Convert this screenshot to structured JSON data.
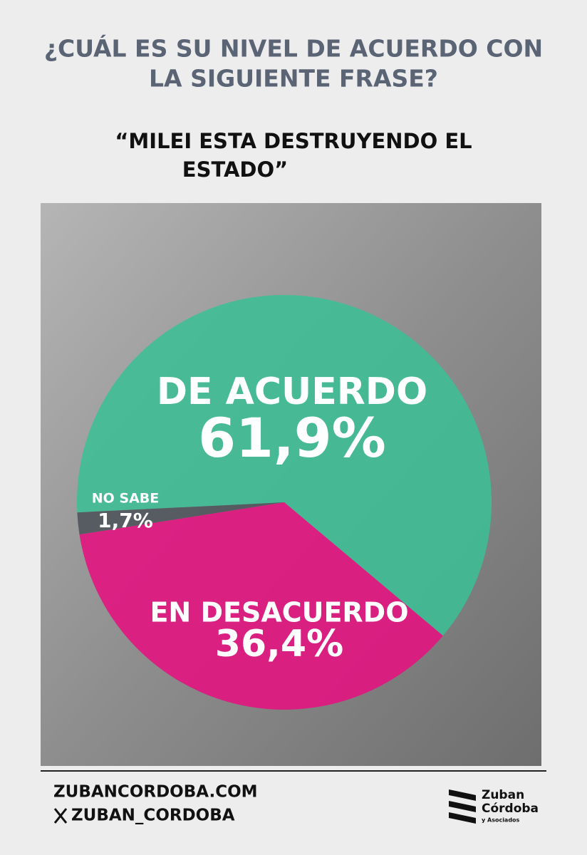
{
  "chart_data": {
    "type": "pie",
    "title": [
      "¿CUÁL ES SU NIVEL DE ACUERDO CON",
      "LA SIGUIENTE FRASE?"
    ],
    "subtitle": [
      "“MILEI ESTA DESTRUYENDO EL",
      "ESTADO”"
    ],
    "categories": [
      "DE ACUERDO",
      "EN DESACUERDO",
      "NO SABE"
    ],
    "values": [
      61.9,
      36.4,
      1.7
    ],
    "value_labels": [
      "61,9%",
      "36,4%",
      "1,7%"
    ],
    "colors": [
      "#3cbf95",
      "#e2147f",
      "#4f555c"
    ]
  },
  "footer": {
    "website": "ZUBANCORDOBA.COM",
    "handle": "ZUBAN_CORDOBA",
    "logo": [
      "Zuban",
      "Córdoba",
      "y Asociados"
    ]
  }
}
